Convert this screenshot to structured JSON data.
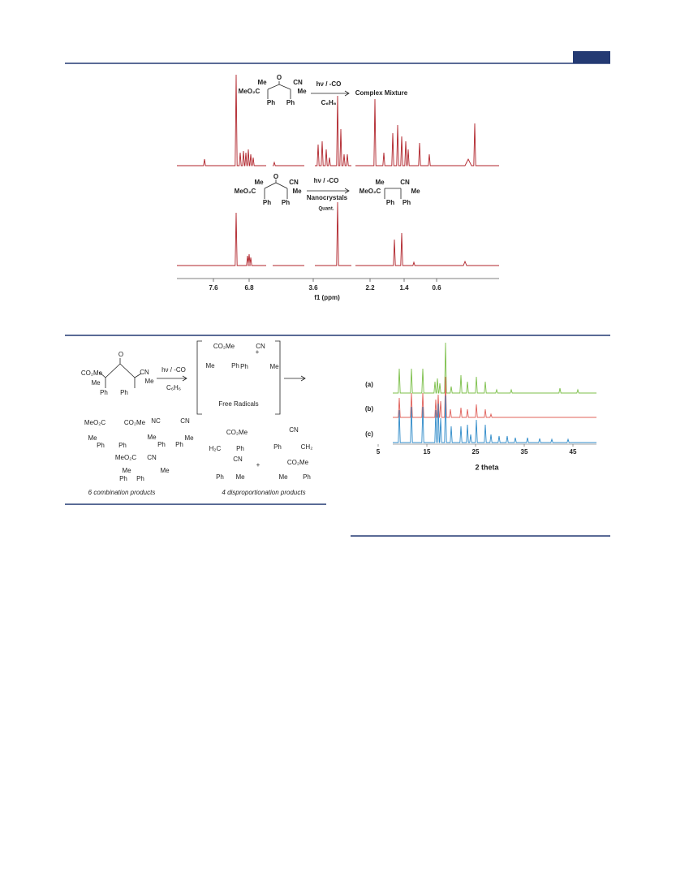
{
  "figure1": {
    "reaction_top": {
      "reactant": [
        "Me",
        "O",
        "CN",
        "MeO₂C",
        "Me",
        "Ph",
        "Ph"
      ],
      "conditions": [
        "hν / -CO",
        "C₆H₆"
      ],
      "product": "Complex  Mixture"
    },
    "reaction_bottom": {
      "reactant": [
        "Me",
        "O",
        "CN",
        "MeO₂C",
        "Me",
        "Ph",
        "Ph"
      ],
      "conditions": [
        "hν / -CO",
        "Nanocrystals",
        "Quant."
      ],
      "product": [
        "Me",
        "CN",
        "MeO₂C",
        "Me",
        "Ph",
        "Ph"
      ]
    },
    "axis": {
      "ticks": [
        7.6,
        6.8,
        3.6,
        2.2,
        1.4,
        0.6
      ],
      "label": "f1 (ppm)"
    }
  },
  "figure2": {
    "scheme": {
      "reactant": [
        "CO₂Me",
        "O",
        "CN",
        "Me",
        "Me",
        "Ph",
        "Ph"
      ],
      "conditions": [
        "hν / -CO",
        "C₆H₆"
      ],
      "radicals": [
        "CO₂Me",
        "Me",
        "Ph",
        "+",
        "CN",
        "Ph",
        "Me"
      ],
      "radicals_label": "Free Radicals",
      "combination": [
        "MeO₂C",
        "CO₂Me",
        "Me",
        "Ph",
        "Ph",
        "NC",
        "CN",
        "Me",
        "Ph",
        "Ph",
        "Me",
        "MeO₂C",
        "CN",
        "Me",
        "Ph",
        "Ph",
        "Me"
      ],
      "disproportionation": [
        "CO₂Me",
        "H₂C",
        "Ph",
        "CN",
        "Ph",
        "Me",
        "+",
        "CN",
        "Ph",
        "CH₂",
        "CO₂Me",
        "Me",
        "Ph"
      ],
      "captions": [
        "6 combination products",
        "4 disproportionation products"
      ]
    },
    "xrd": {
      "traces": [
        "(a)",
        "(b)",
        "(c)"
      ],
      "ticks": [
        5,
        15,
        25,
        35,
        45
      ],
      "label": "2 theta"
    }
  }
}
